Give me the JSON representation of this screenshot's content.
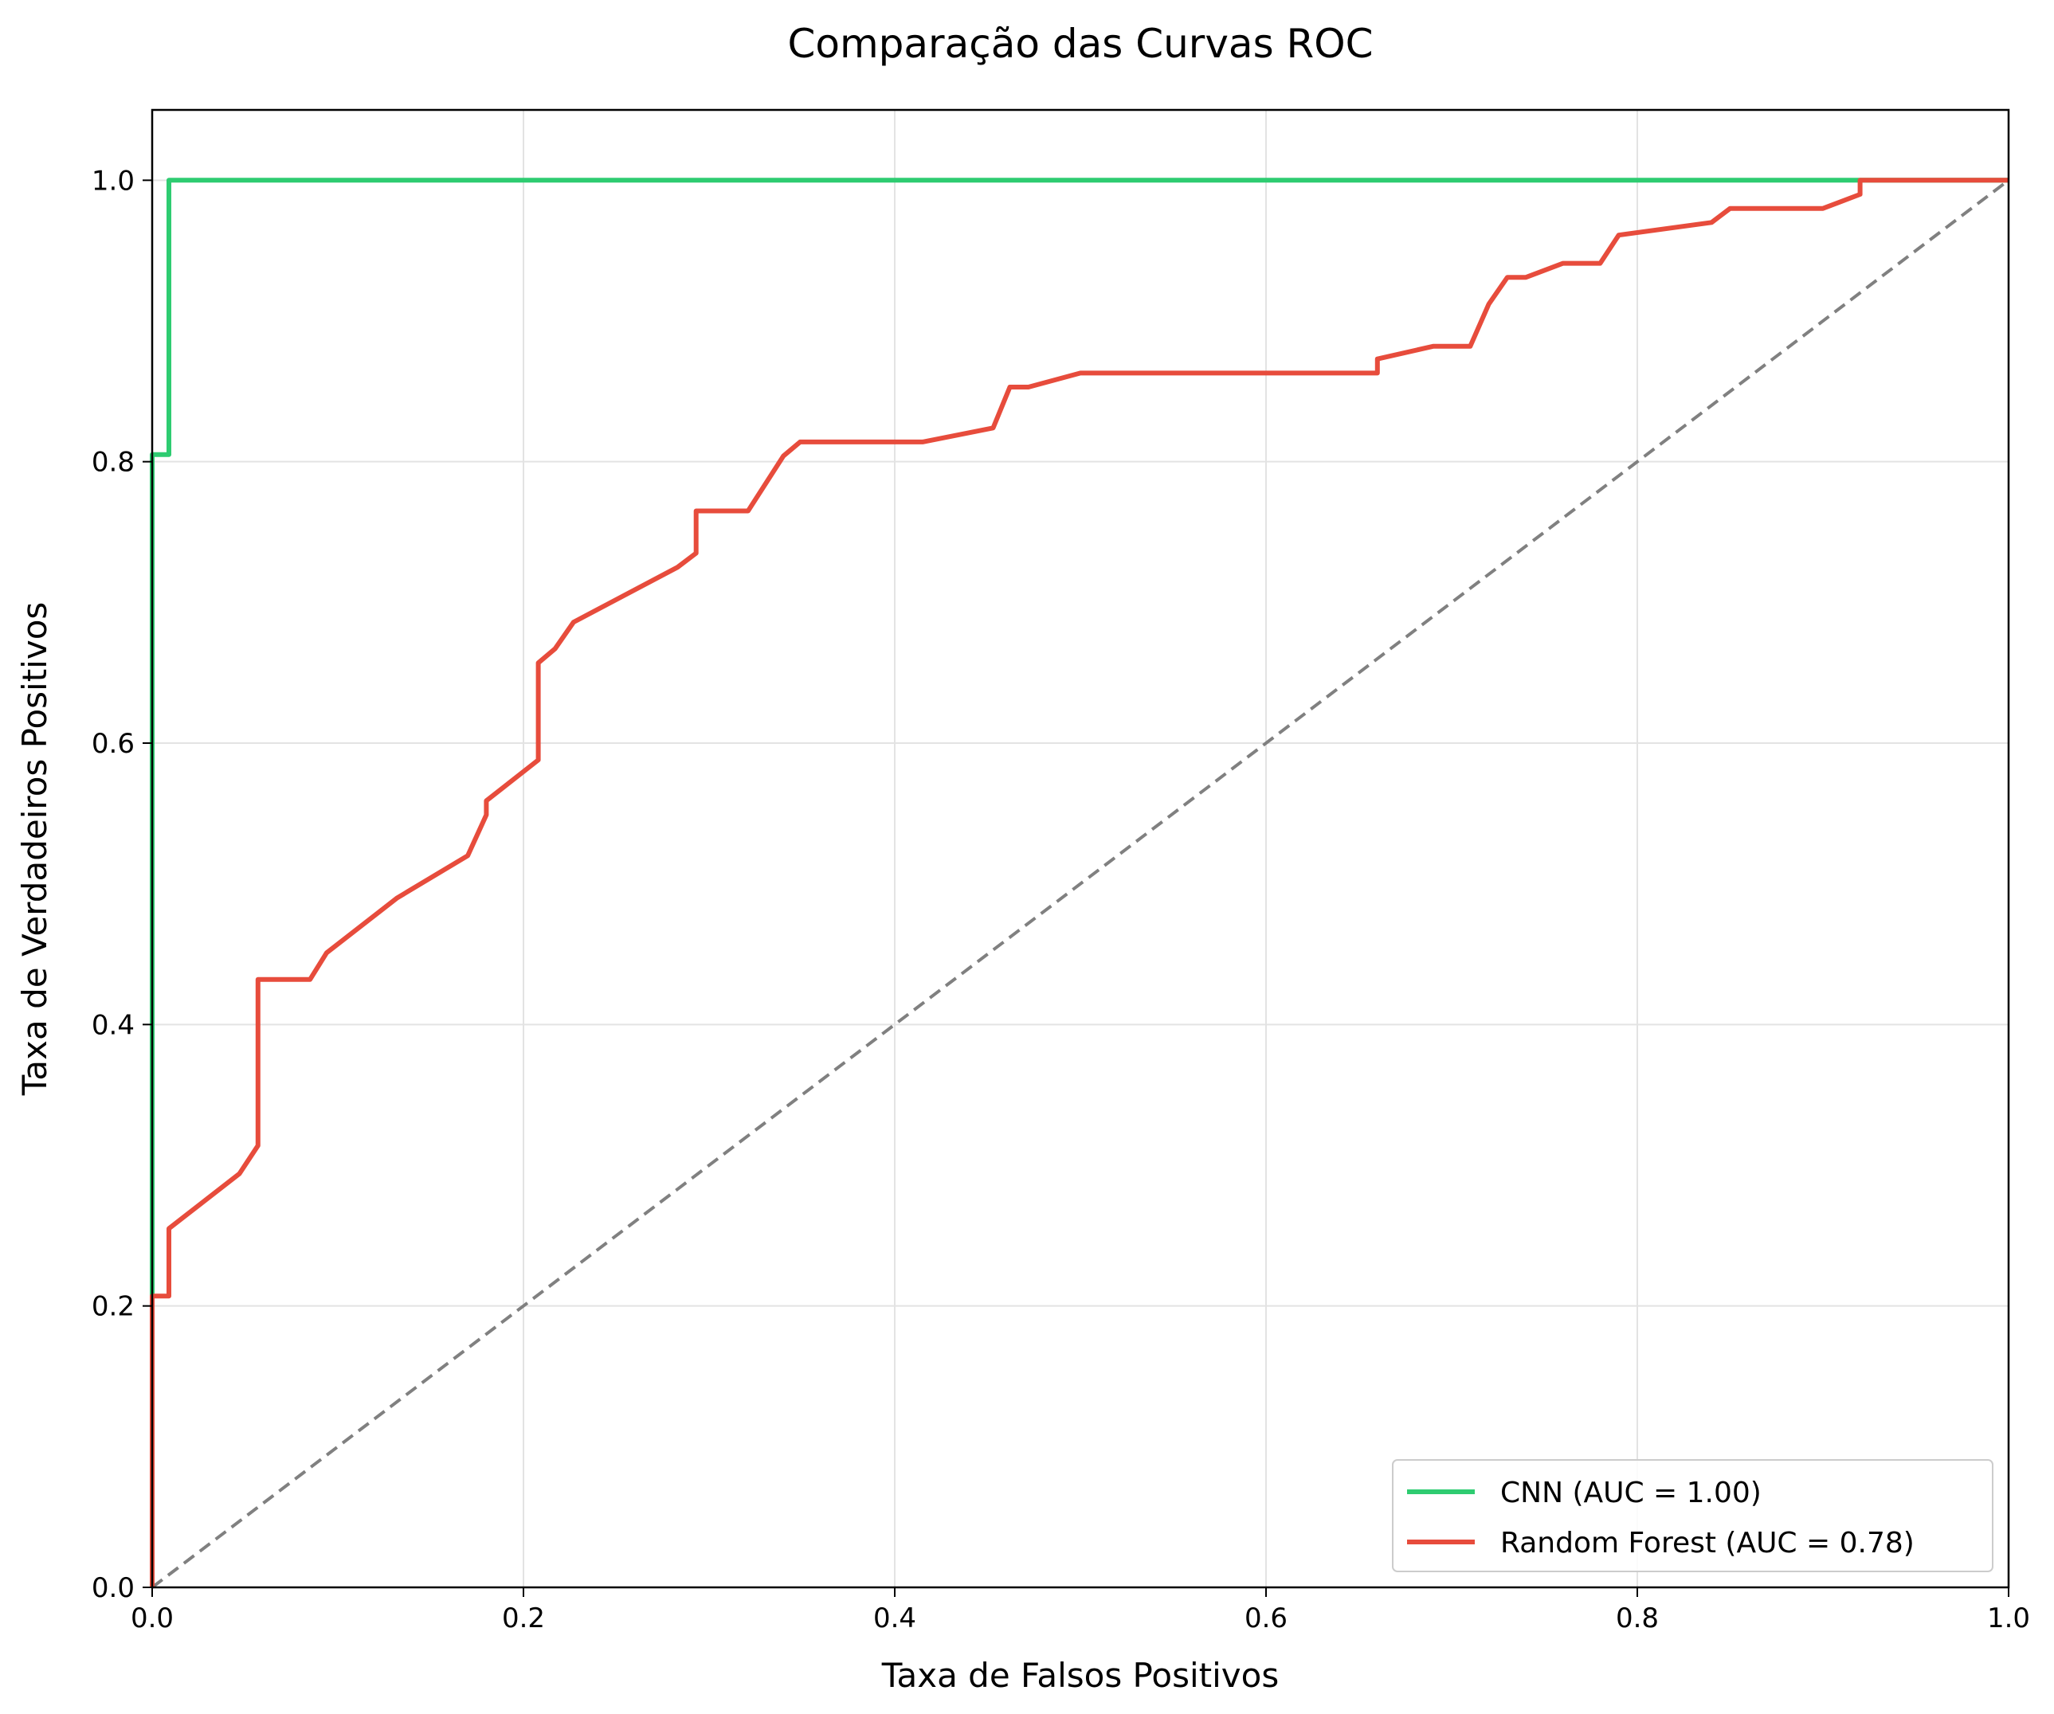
{
  "chart_data": {
    "type": "line",
    "title": "Comparação das Curvas ROC",
    "xlabel": "Taxa de Falsos Positivos",
    "ylabel": "Taxa de Verdadeiros Positivos",
    "xlim": [
      0,
      1
    ],
    "ylim": [
      0,
      1.05
    ],
    "xticks": [
      "0.0",
      "0.2",
      "0.4",
      "0.6",
      "0.8",
      "1.0"
    ],
    "yticks": [
      "0.0",
      "0.2",
      "0.4",
      "0.6",
      "0.8",
      "1.0"
    ],
    "grid": true,
    "legend_position": "bottom-right",
    "series": [
      {
        "name": "CNN (AUC = 1.00)",
        "color": "#2ecc71",
        "x": [
          0,
          0,
          0.009,
          0.009,
          0.92,
          1.0
        ],
        "y": [
          0,
          0.805,
          0.805,
          1.0,
          1.0,
          1.0
        ]
      },
      {
        "name": "Random Forest (AUC = 0.78)",
        "color": "#e74c3c",
        "x": [
          0,
          0,
          0.009,
          0.009,
          0.047,
          0.057,
          0.057,
          0.085,
          0.094,
          0.132,
          0.17,
          0.18,
          0.18,
          0.208,
          0.208,
          0.217,
          0.227,
          0.283,
          0.293,
          0.293,
          0.321,
          0.34,
          0.349,
          0.415,
          0.453,
          0.462,
          0.472,
          0.5,
          0.66,
          0.66,
          0.69,
          0.71,
          0.72,
          0.73,
          0.74,
          0.76,
          0.78,
          0.79,
          0.84,
          0.85,
          0.9,
          0.92,
          0.92,
          1.0
        ],
        "y": [
          0,
          0.207,
          0.207,
          0.255,
          0.294,
          0.314,
          0.432,
          0.432,
          0.451,
          0.49,
          0.52,
          0.549,
          0.559,
          0.588,
          0.657,
          0.667,
          0.686,
          0.725,
          0.735,
          0.765,
          0.765,
          0.804,
          0.814,
          0.814,
          0.824,
          0.853,
          0.853,
          0.863,
          0.863,
          0.873,
          0.882,
          0.882,
          0.912,
          0.931,
          0.931,
          0.941,
          0.941,
          0.961,
          0.97,
          0.98,
          0.98,
          0.99,
          1.0,
          1.0
        ]
      }
    ],
    "reference_line": {
      "x": [
        0,
        1
      ],
      "y": [
        0,
        1
      ],
      "color": "#808080",
      "style": "dashed"
    }
  }
}
